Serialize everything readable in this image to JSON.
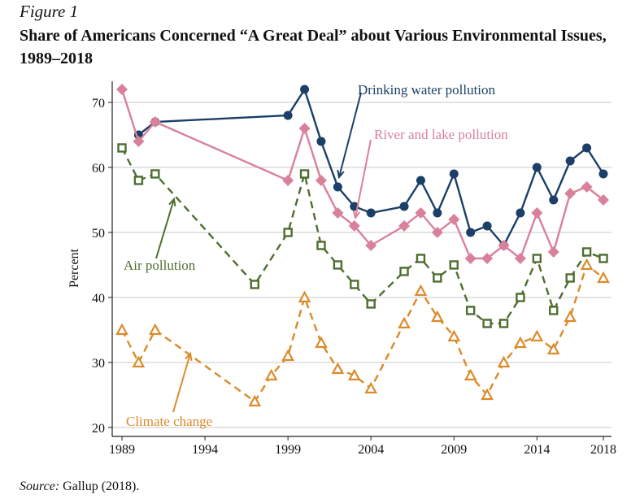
{
  "figure_label": "Figure 1",
  "source_label": "Source:",
  "source_text": "Gallup (2018).",
  "chart_data": {
    "type": "line",
    "title": "Share of Americans Concerned “A Great Deal” about Various Environmental Issues, 1989–2018",
    "xlabel": "",
    "ylabel": "Percent",
    "xlim": [
      1989,
      2018
    ],
    "ylim": [
      20,
      72
    ],
    "xticks": [
      1989,
      1994,
      1999,
      2004,
      2009,
      2014,
      2018
    ],
    "yticks": [
      20,
      30,
      40,
      50,
      60,
      70
    ],
    "grid": "horizontal",
    "series": [
      {
        "name": "Drinking water pollution",
        "color": "#1b3f66",
        "marker": "circle",
        "dash": false,
        "x": [
          1990,
          1991,
          1999,
          2000,
          2001,
          2002,
          2003,
          2004,
          2006,
          2007,
          2008,
          2009,
          2010,
          2011,
          2012,
          2013,
          2014,
          2015,
          2016,
          2017,
          2018
        ],
        "y": [
          65,
          67,
          68,
          72,
          64,
          57,
          54,
          53,
          54,
          58,
          53,
          59,
          50,
          51,
          48,
          53,
          60,
          55,
          61,
          63,
          59
        ]
      },
      {
        "name": "River and lake pollution",
        "color": "#d9819b",
        "marker": "diamond",
        "dash": false,
        "x": [
          1989,
          1990,
          1991,
          1999,
          2000,
          2001,
          2002,
          2003,
          2004,
          2006,
          2007,
          2008,
          2009,
          2010,
          2011,
          2012,
          2013,
          2014,
          2015,
          2016,
          2017,
          2018
        ],
        "y": [
          72,
          64,
          67,
          58,
          66,
          58,
          53,
          51,
          48,
          51,
          53,
          50,
          52,
          46,
          46,
          48,
          46,
          53,
          47,
          56,
          57,
          55
        ]
      },
      {
        "name": "Air pollution",
        "color": "#4e6e30",
        "marker": "square",
        "dash": true,
        "x": [
          1989,
          1990,
          1991,
          1997,
          1999,
          2000,
          2001,
          2002,
          2003,
          2004,
          2006,
          2007,
          2008,
          2009,
          2010,
          2011,
          2012,
          2013,
          2014,
          2015,
          2016,
          2017,
          2018
        ],
        "y": [
          63,
          58,
          59,
          42,
          50,
          59,
          48,
          45,
          42,
          39,
          44,
          46,
          43,
          45,
          38,
          36,
          36,
          40,
          46,
          38,
          43,
          47,
          46
        ]
      },
      {
        "name": "Climate change",
        "color": "#dc8a2a",
        "marker": "triangle",
        "dash": true,
        "x": [
          1989,
          1990,
          1991,
          1997,
          1998,
          1999,
          2000,
          2001,
          2002,
          2003,
          2004,
          2006,
          2007,
          2008,
          2009,
          2010,
          2011,
          2012,
          2013,
          2014,
          2015,
          2016,
          2017,
          2018
        ],
        "y": [
          35,
          30,
          35,
          24,
          28,
          31,
          40,
          33,
          29,
          28,
          26,
          36,
          41,
          37,
          34,
          28,
          25,
          30,
          33,
          34,
          32,
          37,
          45,
          43
        ]
      }
    ]
  }
}
